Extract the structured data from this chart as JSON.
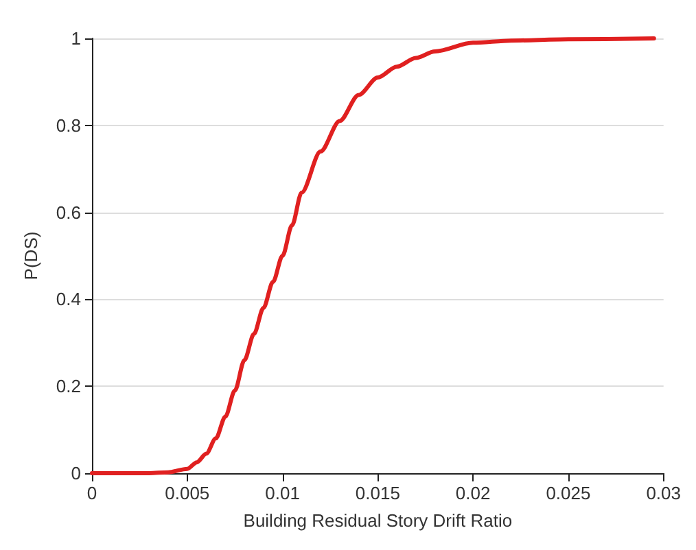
{
  "chart_data": {
    "type": "line",
    "xlabel": "Building Residual Story Drift Ratio",
    "ylabel": "P(DS)",
    "x": [
      0,
      0.003,
      0.004,
      0.005,
      0.0055,
      0.006,
      0.0065,
      0.007,
      0.0075,
      0.008,
      0.0085,
      0.009,
      0.0095,
      0.01,
      0.0105,
      0.011,
      0.012,
      0.013,
      0.014,
      0.015,
      0.016,
      0.017,
      0.018,
      0.02,
      0.022,
      0.025,
      0.0295
    ],
    "series": [
      {
        "color": "#e02020",
        "values": [
          0,
          0,
          0.002,
          0.01,
          0.025,
          0.045,
          0.08,
          0.13,
          0.19,
          0.26,
          0.32,
          0.38,
          0.44,
          0.5,
          0.57,
          0.645,
          0.74,
          0.81,
          0.87,
          0.91,
          0.935,
          0.955,
          0.97,
          0.99,
          0.995,
          0.998,
          1
        ]
      }
    ],
    "xlim": [
      0,
      0.03
    ],
    "xticks": [
      0,
      0.005,
      0.01,
      0.015,
      0.02,
      0.025,
      0.03
    ],
    "ylim": [
      0,
      1
    ],
    "yticks": [
      0,
      0.2,
      0.4,
      0.6,
      0.8,
      1
    ],
    "grid": "y",
    "marker": "none",
    "line_style": "solid"
  }
}
